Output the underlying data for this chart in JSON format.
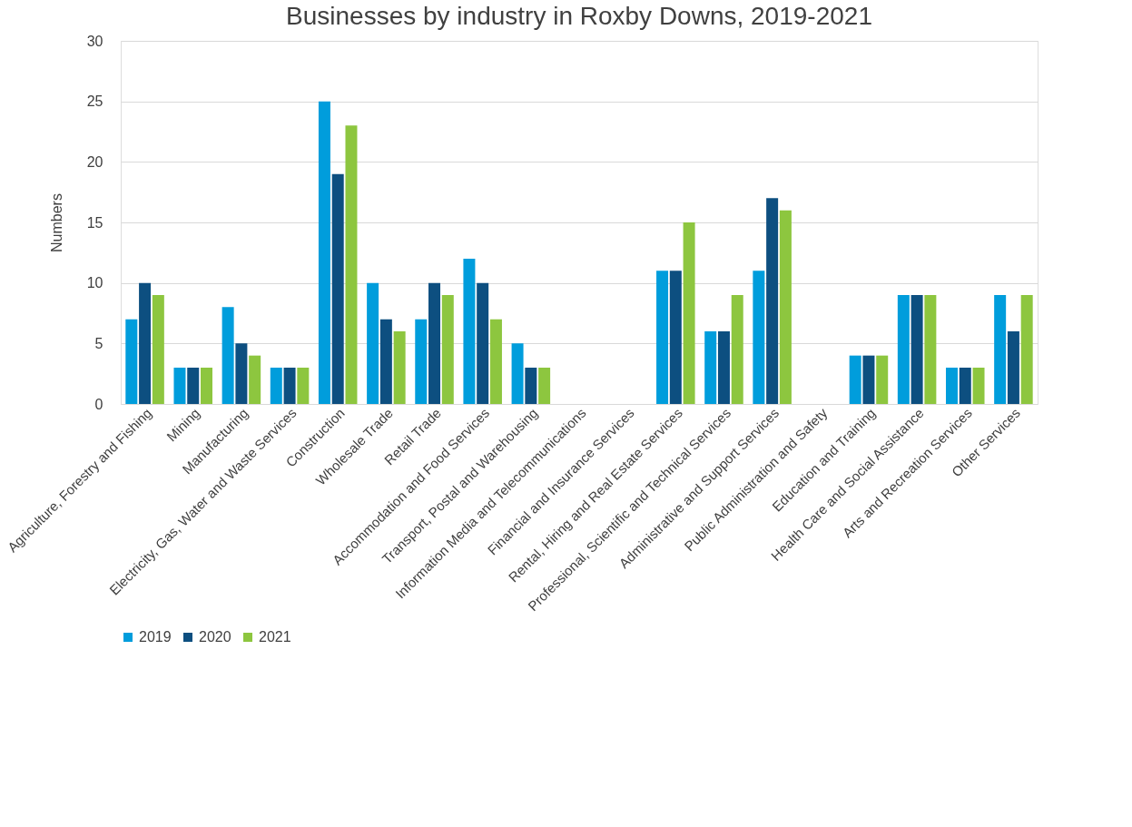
{
  "chart_data": {
    "type": "bar",
    "title": "Businesses by industry in Roxby Downs, 2019-2021",
    "ylabel": "Numbers",
    "categories": [
      "Agriculture, Forestry and Fishing",
      "Mining",
      "Manufacturing",
      "Electricity, Gas, Water and Waste Services",
      "Construction",
      "Wholesale Trade",
      "Retail Trade",
      "Accommodation and Food Services",
      "Transport, Postal and Warehousing",
      "Information Media and Telecommunications",
      "Financial and Insurance Services",
      "Rental, Hiring and Real Estate Services",
      "Professional, Scientific and Technical Services",
      "Administrative and Support Services",
      "Public Administration and Safety",
      "Education and Training",
      "Health Care and Social Assistance",
      "Arts and Recreation Services",
      "Other Services"
    ],
    "series": [
      {
        "name": "2019",
        "color": "#009ddc",
        "values": [
          7,
          3,
          8,
          3,
          25,
          10,
          7,
          12,
          5,
          null,
          null,
          11,
          6,
          11,
          null,
          4,
          9,
          3,
          9
        ]
      },
      {
        "name": "2020",
        "color": "#0d4f80",
        "values": [
          10,
          3,
          5,
          3,
          19,
          7,
          10,
          10,
          3,
          null,
          null,
          11,
          6,
          17,
          null,
          4,
          9,
          3,
          6
        ]
      },
      {
        "name": "2021",
        "color": "#8dc63f",
        "values": [
          9,
          3,
          4,
          3,
          23,
          6,
          9,
          7,
          3,
          null,
          null,
          15,
          9,
          16,
          null,
          4,
          9,
          3,
          9
        ]
      }
    ],
    "ylim": [
      0,
      30
    ],
    "yticks": [
      0,
      5,
      10,
      15,
      20,
      25,
      30
    ],
    "grid": "y",
    "legend": "bottom"
  }
}
